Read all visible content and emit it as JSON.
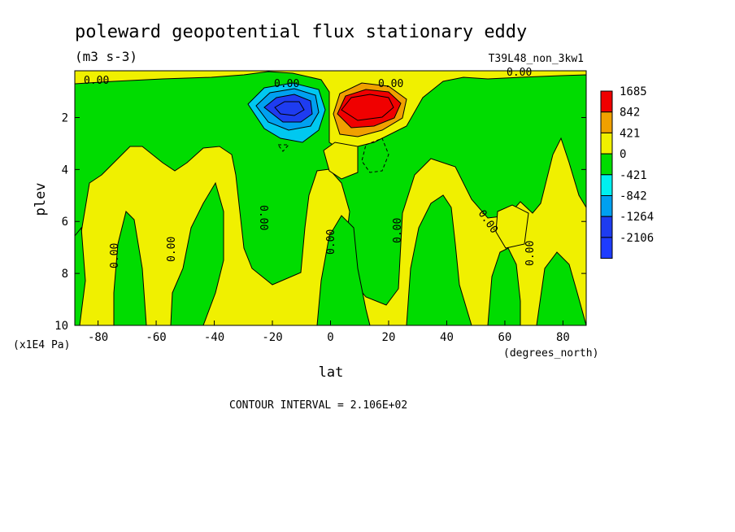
{
  "chart_data": {
    "type": "heatmap",
    "title": "poleward geopotential flux stationary eddy",
    "units": "(m3 s-3)",
    "run_label": "T39L48_non_3kw1",
    "xlabel": "lat",
    "xunits": "(degrees_north)",
    "ylabel": "plev",
    "yunits": "(x1E4 Pa)",
    "xlim": [
      -88,
      88
    ],
    "ylim": [
      10,
      0.2
    ],
    "x_ticks": [
      -80,
      -60,
      -40,
      -20,
      0,
      20,
      40,
      60,
      80
    ],
    "x_tick_labels": [
      "-80",
      "-60",
      "-40",
      "-20",
      "0",
      "20",
      "40",
      "60",
      "80"
    ],
    "y_ticks": [
      2,
      4,
      6,
      8,
      10
    ],
    "y_tick_labels": [
      "2",
      "4",
      "6",
      "8",
      "10"
    ],
    "contour_interval_text": "CONTOUR INTERVAL = 2.106E+02",
    "contour_labels": [
      "0.00",
      "0.00",
      "0.00",
      "0.00",
      "0.00",
      "0.00",
      "0.00",
      "0.00",
      "0.00",
      "0.00",
      "0.00"
    ],
    "legend": {
      "levels": [
        "1685",
        "842",
        "421",
        "0",
        "-421",
        "-842",
        "-1264",
        "-2106"
      ],
      "colors": [
        "#f00000",
        "#f0a000",
        "#f0f000",
        "#00dc00",
        "#00f0f0",
        "#00a0f0",
        "#1e3cf0",
        "#1e3cff"
      ],
      "placement": "right"
    },
    "colors": {
      "positive": "#f0f000",
      "negative": "#00dc00",
      "max_positive": "#f00000",
      "mid_positive": "#f0a000",
      "mid_negative": "#00a0f0",
      "min_negative": "#1e3cf0",
      "light_negative": "#00c8f0"
    },
    "features": [
      {
        "name": "positive-maximum",
        "lat": 12,
        "plev": 1.6,
        "value": 1685
      },
      {
        "name": "negative-minimum",
        "lat": -15,
        "plev": 1.5,
        "value": -2106
      }
    ]
  }
}
